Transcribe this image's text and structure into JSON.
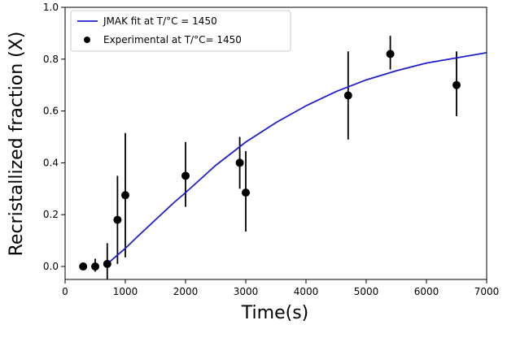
{
  "chart_data": {
    "type": "scatter",
    "xlabel": "Time(s)",
    "ylabel": "Recristallized fraction (X)",
    "xlim": [
      0,
      7000
    ],
    "ylim": [
      -0.05,
      1.0
    ],
    "xticks": [
      0,
      1000,
      2000,
      3000,
      4000,
      5000,
      6000,
      7000
    ],
    "yticks": [
      0.0,
      0.2,
      0.4,
      0.6,
      0.8,
      1.0
    ],
    "xtick_labels": [
      "0",
      "1000",
      "2000",
      "3000",
      "4000",
      "5000",
      "6000",
      "7000"
    ],
    "ytick_labels": [
      "0.0",
      "0.2",
      "0.4",
      "0.6",
      "0.8",
      "1.0"
    ],
    "grid": false,
    "legend_position": "top-left",
    "fit": {
      "name": "JMAK fit at T/°C = 1450",
      "color": "#1f1fcc",
      "x": [
        650,
        800,
        1000,
        1200,
        1500,
        1800,
        2000,
        2500,
        3000,
        3500,
        4000,
        4500,
        5000,
        5500,
        6000,
        6500,
        7000
      ],
      "y": [
        0.0,
        0.03,
        0.07,
        0.115,
        0.18,
        0.245,
        0.285,
        0.39,
        0.48,
        0.555,
        0.62,
        0.675,
        0.72,
        0.755,
        0.785,
        0.805,
        0.825
      ]
    },
    "experimental": {
      "name": "Experimental at T/°C= 1450",
      "color": "#000000",
      "points": [
        {
          "x": 300,
          "y": 0.0,
          "err_low": 0.0,
          "err_high": 0.0
        },
        {
          "x": 500,
          "y": 0.0,
          "err_low": 0.02,
          "err_high": 0.03
        },
        {
          "x": 700,
          "y": 0.01,
          "err_low": 0.06,
          "err_high": 0.08
        },
        {
          "x": 870,
          "y": 0.18,
          "err_low": 0.17,
          "err_high": 0.17
        },
        {
          "x": 1000,
          "y": 0.275,
          "err_low": 0.24,
          "err_high": 0.24
        },
        {
          "x": 2000,
          "y": 0.35,
          "err_low": 0.12,
          "err_high": 0.13
        },
        {
          "x": 2900,
          "y": 0.4,
          "err_low": 0.1,
          "err_high": 0.1
        },
        {
          "x": 3000,
          "y": 0.285,
          "err_low": 0.15,
          "err_high": 0.16
        },
        {
          "x": 4700,
          "y": 0.66,
          "err_low": 0.17,
          "err_high": 0.17
        },
        {
          "x": 5400,
          "y": 0.82,
          "err_low": 0.06,
          "err_high": 0.07
        },
        {
          "x": 6500,
          "y": 0.7,
          "err_low": 0.12,
          "err_high": 0.13
        }
      ]
    }
  }
}
